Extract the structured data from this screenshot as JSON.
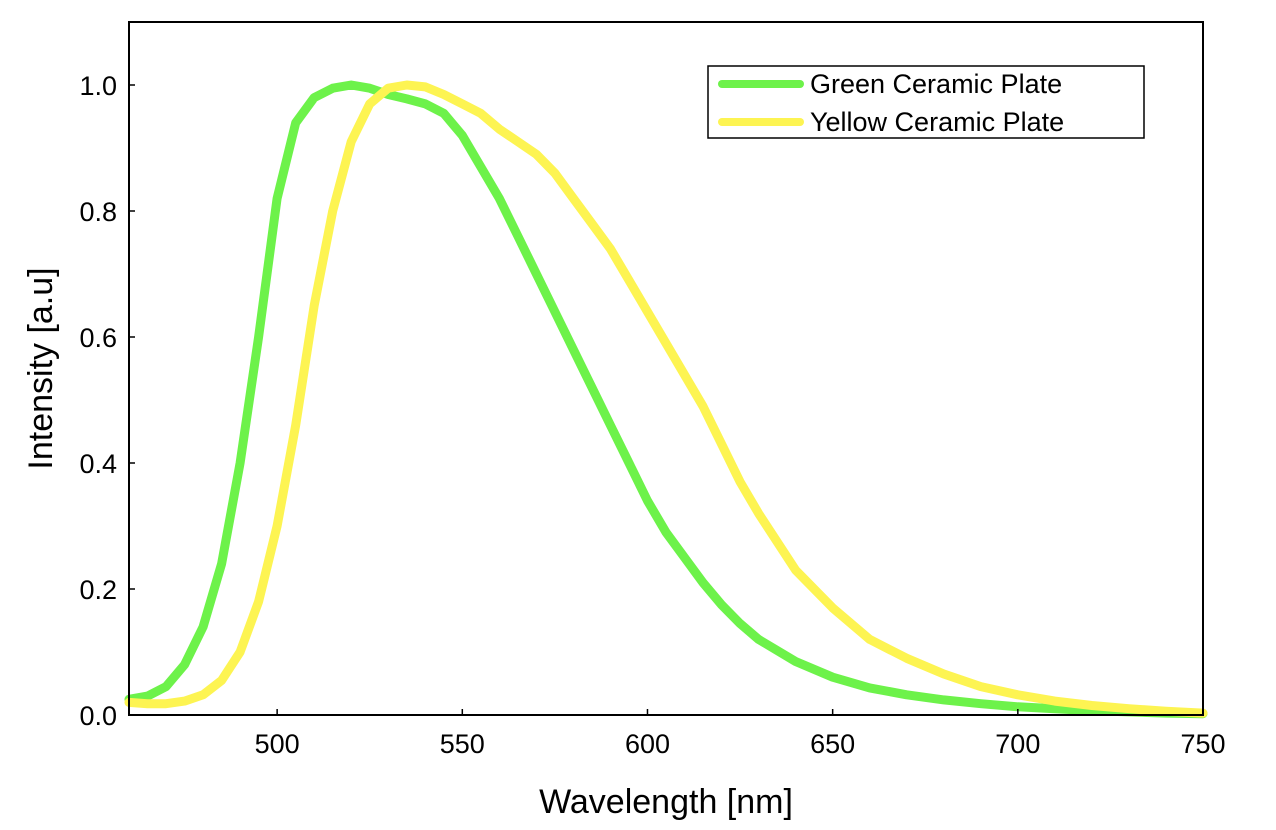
{
  "chart_data": {
    "type": "line",
    "title": "",
    "xlabel": "Wavelength [nm]",
    "ylabel": "Intensity [a.u]",
    "xlim": [
      460,
      750
    ],
    "ylim": [
      0,
      1.1
    ],
    "xticks": [
      500,
      550,
      600,
      650,
      700,
      750
    ],
    "yticks": [
      0.0,
      0.2,
      0.4,
      0.6,
      0.8,
      1.0
    ],
    "xtick_labels": [
      "500",
      "550",
      "600",
      "650",
      "700",
      "750"
    ],
    "ytick_labels": [
      "0.0",
      "0.2",
      "0.4",
      "0.6",
      "0.8",
      "1.0"
    ],
    "legend_position": "top-right",
    "grid": false,
    "series": [
      {
        "name": "Green Ceramic Plate",
        "color": "#6df24a",
        "x": [
          460,
          465,
          470,
          475,
          480,
          485,
          490,
          495,
          500,
          505,
          510,
          515,
          520,
          525,
          530,
          535,
          540,
          545,
          550,
          555,
          560,
          565,
          570,
          575,
          580,
          585,
          590,
          595,
          600,
          605,
          610,
          615,
          620,
          625,
          630,
          640,
          650,
          660,
          670,
          680,
          690,
          700,
          710,
          720,
          730,
          740,
          750
        ],
        "y": [
          0.025,
          0.03,
          0.045,
          0.08,
          0.14,
          0.24,
          0.4,
          0.6,
          0.82,
          0.94,
          0.98,
          0.995,
          1.0,
          0.995,
          0.985,
          0.978,
          0.97,
          0.955,
          0.92,
          0.87,
          0.82,
          0.76,
          0.7,
          0.64,
          0.58,
          0.52,
          0.46,
          0.4,
          0.34,
          0.29,
          0.25,
          0.21,
          0.175,
          0.145,
          0.12,
          0.085,
          0.06,
          0.043,
          0.032,
          0.024,
          0.018,
          0.013,
          0.01,
          0.007,
          0.005,
          0.003,
          0.002
        ]
      },
      {
        "name": "Yellow Ceramic Plate",
        "color": "#fdf452",
        "x": [
          460,
          465,
          470,
          475,
          480,
          485,
          490,
          495,
          500,
          505,
          510,
          515,
          520,
          525,
          530,
          535,
          540,
          545,
          550,
          555,
          560,
          565,
          570,
          575,
          580,
          585,
          590,
          595,
          600,
          605,
          610,
          615,
          620,
          625,
          630,
          640,
          650,
          660,
          670,
          680,
          690,
          700,
          710,
          720,
          730,
          740,
          750
        ],
        "y": [
          0.02,
          0.018,
          0.018,
          0.022,
          0.032,
          0.055,
          0.1,
          0.18,
          0.3,
          0.46,
          0.65,
          0.8,
          0.91,
          0.97,
          0.995,
          1.0,
          0.997,
          0.985,
          0.97,
          0.955,
          0.93,
          0.91,
          0.89,
          0.86,
          0.82,
          0.78,
          0.74,
          0.69,
          0.64,
          0.59,
          0.54,
          0.49,
          0.43,
          0.37,
          0.32,
          0.23,
          0.17,
          0.12,
          0.09,
          0.065,
          0.045,
          0.032,
          0.022,
          0.015,
          0.01,
          0.006,
          0.003
        ]
      }
    ]
  }
}
